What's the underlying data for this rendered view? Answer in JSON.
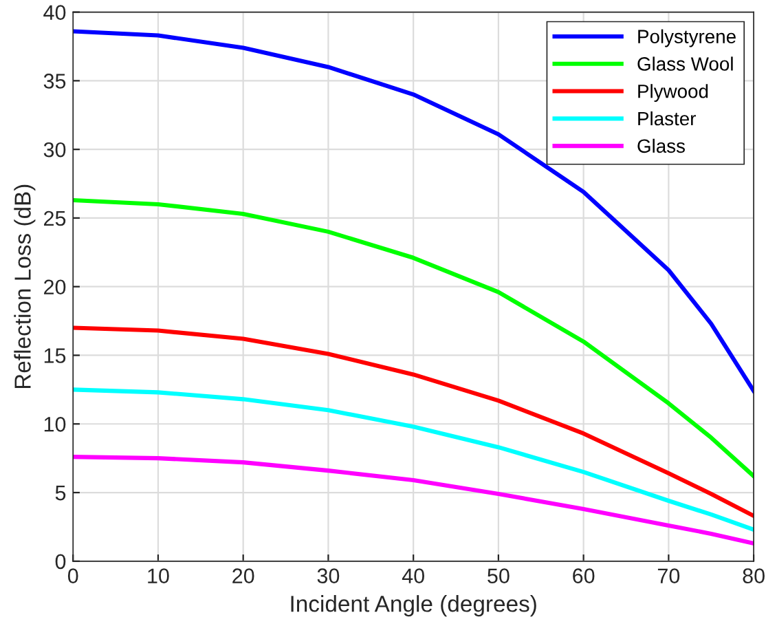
{
  "chart_data": {
    "type": "line",
    "xlabel": "Incident Angle (degrees)",
    "ylabel": "Reflection Loss (dB)",
    "x": [
      0,
      10,
      20,
      30,
      40,
      50,
      60,
      70,
      75,
      80
    ],
    "series": [
      {
        "name": "Polystyrene",
        "color": "#0000ff",
        "values": [
          38.6,
          38.3,
          37.4,
          36.0,
          34.0,
          31.1,
          26.9,
          21.2,
          17.3,
          12.4
        ]
      },
      {
        "name": "Glass Wool",
        "color": "#00ff00",
        "values": [
          26.3,
          26.0,
          25.3,
          24.0,
          22.1,
          19.6,
          16.0,
          11.5,
          9.0,
          6.2
        ]
      },
      {
        "name": "Plywood",
        "color": "#ff0000",
        "values": [
          17.0,
          16.8,
          16.2,
          15.1,
          13.6,
          11.7,
          9.3,
          6.4,
          4.9,
          3.3
        ]
      },
      {
        "name": "Plaster",
        "color": "#00ffff",
        "values": [
          12.5,
          12.3,
          11.8,
          11.0,
          9.8,
          8.3,
          6.5,
          4.4,
          3.4,
          2.3
        ]
      },
      {
        "name": "Glass",
        "color": "#ff00ff",
        "values": [
          7.6,
          7.5,
          7.2,
          6.6,
          5.9,
          4.9,
          3.8,
          2.6,
          2.0,
          1.3
        ]
      }
    ],
    "xlim": [
      0,
      80
    ],
    "xticks": [
      0,
      10,
      20,
      30,
      40,
      50,
      60,
      70,
      80
    ],
    "ylim": [
      0,
      40
    ],
    "yticks": [
      0,
      5,
      10,
      15,
      20,
      25,
      30,
      35,
      40
    ],
    "grid": true,
    "legend": "top right",
    "line_style": "solid",
    "marker": "none"
  }
}
